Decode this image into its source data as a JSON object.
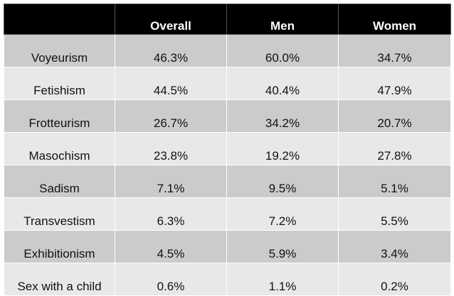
{
  "table": {
    "headers": [
      "",
      "Overall",
      "Men",
      "Women"
    ],
    "rows": [
      {
        "label": "Voyeurism",
        "overall": "46.3%",
        "men": "60.0%",
        "women": "34.7%"
      },
      {
        "label": "Fetishism",
        "overall": "44.5%",
        "men": "40.4%",
        "women": "47.9%"
      },
      {
        "label": "Frotteurism",
        "overall": "26.7%",
        "men": "34.2%",
        "women": "20.7%"
      },
      {
        "label": "Masochism",
        "overall": "23.8%",
        "men": "19.2%",
        "women": "27.8%"
      },
      {
        "label": "Sadism",
        "overall": "7.1%",
        "men": "9.5%",
        "women": "5.1%"
      },
      {
        "label": "Transvestism",
        "overall": "6.3%",
        "men": "7.2%",
        "women": "5.5%"
      },
      {
        "label": "Exhibitionism",
        "overall": "4.5%",
        "men": "5.9%",
        "women": "3.4%"
      },
      {
        "label": "Sex with a child",
        "overall": "0.6%",
        "men": "1.1%",
        "women": "0.2%"
      }
    ]
  },
  "colors": {
    "header_bg": "#000000",
    "header_text": "#ffffff",
    "row_dark": "#cbcbcb",
    "row_light": "#e8e8e8"
  }
}
